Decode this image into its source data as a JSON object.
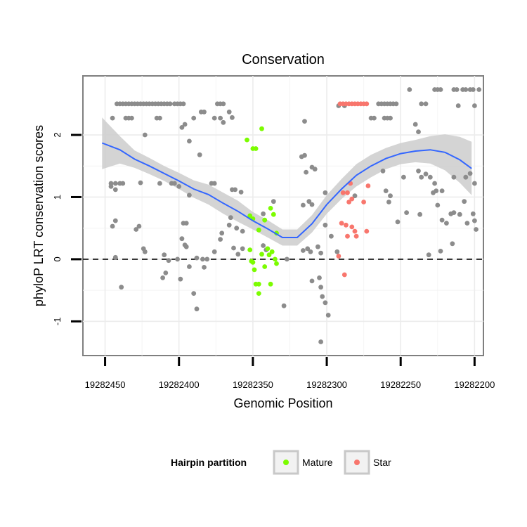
{
  "colors": {
    "other": "#8c8c8c",
    "mature": "#7CFC00",
    "star": "#F8766D",
    "smooth_line": "#3366FF",
    "ribbon": "#cccccc"
  },
  "chart_data": {
    "type": "scatter",
    "title": "Conservation",
    "xlabel": "Genomic Position",
    "ylabel": "phyloP LRT conservation scores",
    "x_reversed": true,
    "xlim": [
      19282465,
      19282194
    ],
    "ylim": [
      -1.55,
      2.95
    ],
    "x_ticks": [
      19282450,
      19282400,
      19282350,
      19282300,
      19282250,
      19282200
    ],
    "x_tick_labels": [
      "19282450",
      "19282400",
      "19282350",
      "19282300",
      "19282250",
      "19282200"
    ],
    "y_ticks": [
      -1,
      0,
      1,
      2
    ],
    "y_tick_labels": [
      "-1",
      "0",
      "1",
      "2"
    ],
    "reference_line": {
      "y": 0,
      "style": "dashed"
    },
    "grid": true,
    "legend": {
      "title": "Hairpin partition",
      "position": "bottom",
      "entries": [
        {
          "label": "Mature",
          "color": "#7CFC00"
        },
        {
          "label": "Star",
          "color": "#F8766D"
        }
      ]
    },
    "series": [
      {
        "id": "other",
        "points": [
          [
            19282442,
            2.5
          ],
          [
            19282440,
            2.5
          ],
          [
            19282438,
            2.5
          ],
          [
            19282436,
            2.5
          ],
          [
            19282434,
            2.5
          ],
          [
            19282432,
            2.5
          ],
          [
            19282430,
            2.5
          ],
          [
            19282428,
            2.5
          ],
          [
            19282426,
            2.5
          ],
          [
            19282424,
            2.5
          ],
          [
            19282422,
            2.5
          ],
          [
            19282420,
            2.5
          ],
          [
            19282418,
            2.5
          ],
          [
            19282416,
            2.5
          ],
          [
            19282414,
            2.5
          ],
          [
            19282412,
            2.5
          ],
          [
            19282410,
            2.5
          ],
          [
            19282408,
            2.5
          ],
          [
            19282406,
            2.5
          ],
          [
            19282403,
            2.5
          ],
          [
            19282401,
            2.5
          ],
          [
            19282399,
            2.5
          ],
          [
            19282397,
            2.5
          ],
          [
            19282374,
            2.5
          ],
          [
            19282372,
            2.5
          ],
          [
            19282370,
            2.5
          ],
          [
            19282292,
            2.47
          ],
          [
            19282265,
            2.5
          ],
          [
            19282263,
            2.5
          ],
          [
            19282261,
            2.5
          ],
          [
            19282259,
            2.5
          ],
          [
            19282257,
            2.5
          ],
          [
            19282255,
            2.5
          ],
          [
            19282253,
            2.5
          ],
          [
            19282244,
            2.73
          ],
          [
            19282236,
            2.5
          ],
          [
            19282233,
            2.5
          ],
          [
            19282227,
            2.73
          ],
          [
            19282225,
            2.73
          ],
          [
            19282223,
            2.73
          ],
          [
            19282214,
            2.73
          ],
          [
            19282212,
            2.73
          ],
          [
            19282208,
            2.73
          ],
          [
            19282206,
            2.73
          ],
          [
            19282197,
            2.73
          ],
          [
            19282203,
            2.73
          ],
          [
            19282201,
            2.73
          ],
          [
            19282211,
            2.47
          ],
          [
            19282200,
            2.47
          ],
          [
            19282445,
            2.27
          ],
          [
            19282436,
            2.27
          ],
          [
            19282434,
            2.27
          ],
          [
            19282432,
            2.27
          ],
          [
            19282415,
            2.27
          ],
          [
            19282413,
            2.27
          ],
          [
            19282385,
            2.37
          ],
          [
            19282383,
            2.37
          ],
          [
            19282376,
            2.27
          ],
          [
            19282366,
            2.37
          ],
          [
            19282364,
            2.28
          ],
          [
            19282398,
            2.12
          ],
          [
            19282396,
            2.17
          ],
          [
            19282390,
            2.27
          ],
          [
            19282372,
            2.27
          ],
          [
            19282370,
            2.2
          ],
          [
            19282288,
            2.47
          ],
          [
            19282270,
            2.27
          ],
          [
            19282268,
            2.27
          ],
          [
            19282261,
            2.27
          ],
          [
            19282259,
            2.27
          ],
          [
            19282257,
            2.27
          ],
          [
            19282240,
            2.17
          ],
          [
            19282238,
            2.05
          ],
          [
            19282423,
            2.0
          ],
          [
            19282393,
            1.9
          ],
          [
            19282386,
            1.68
          ],
          [
            19282315,
            2.22
          ],
          [
            19282317,
            1.65
          ],
          [
            19282315,
            1.67
          ],
          [
            19282314,
            1.4
          ],
          [
            19282310,
            1.48
          ],
          [
            19282308,
            1.45
          ],
          [
            19282446,
            1.22
          ],
          [
            19282443,
            1.22
          ],
          [
            19282440,
            1.22
          ],
          [
            19282438,
            1.22
          ],
          [
            19282446,
            1.17
          ],
          [
            19282443,
            1.12
          ],
          [
            19282426,
            1.23
          ],
          [
            19282413,
            1.22
          ],
          [
            19282405,
            1.22
          ],
          [
            19282403,
            1.22
          ],
          [
            19282400,
            1.17
          ],
          [
            19282393,
            1.03
          ],
          [
            19282378,
            1.22
          ],
          [
            19282376,
            1.22
          ],
          [
            19282362,
            1.12
          ],
          [
            19282358,
            1.08
          ],
          [
            19282364,
            1.12
          ],
          [
            19282336,
            0.93
          ],
          [
            19282312,
            0.93
          ],
          [
            19282310,
            0.88
          ],
          [
            19282301,
            1.07
          ],
          [
            19282281,
            1.02
          ],
          [
            19282262,
            1.42
          ],
          [
            19282260,
            1.1
          ],
          [
            19282257,
            1.02
          ],
          [
            19282248,
            1.32
          ],
          [
            19282238,
            1.42
          ],
          [
            19282236,
            1.32
          ],
          [
            19282233,
            1.37
          ],
          [
            19282230,
            1.32
          ],
          [
            19282227,
            1.22
          ],
          [
            19282226,
            1.1
          ],
          [
            19282222,
            1.1
          ],
          [
            19282214,
            1.32
          ],
          [
            19282206,
            1.32
          ],
          [
            19282203,
            1.38
          ],
          [
            19282200,
            1.22
          ],
          [
            19282228,
            1.07
          ],
          [
            19282443,
            0.62
          ],
          [
            19282445,
            0.53
          ],
          [
            19282429,
            0.48
          ],
          [
            19282427,
            0.53
          ],
          [
            19282397,
            0.58
          ],
          [
            19282395,
            0.58
          ],
          [
            19282398,
            0.33
          ],
          [
            19282396,
            0.23
          ],
          [
            19282372,
            0.32
          ],
          [
            19282371,
            0.42
          ],
          [
            19282366,
            0.55
          ],
          [
            19282365,
            0.67
          ],
          [
            19282361,
            0.5
          ],
          [
            19282357,
            0.45
          ],
          [
            19282343,
            0.73
          ],
          [
            19282316,
            0.87
          ],
          [
            19282301,
            0.55
          ],
          [
            19282293,
            0.12
          ],
          [
            19282258,
            0.92
          ],
          [
            19282252,
            0.6
          ],
          [
            19282246,
            0.75
          ],
          [
            19282237,
            0.72
          ],
          [
            19282225,
            0.87
          ],
          [
            19282222,
            0.63
          ],
          [
            19282219,
            0.58
          ],
          [
            19282216,
            0.73
          ],
          [
            19282214,
            0.75
          ],
          [
            19282210,
            0.72
          ],
          [
            19282207,
            0.93
          ],
          [
            19282205,
            0.58
          ],
          [
            19282201,
            0.73
          ],
          [
            19282199,
            0.48
          ],
          [
            19282200,
            0.62
          ],
          [
            19282443,
            0.03
          ],
          [
            19282424,
            0.17
          ],
          [
            19282423,
            0.12
          ],
          [
            19282410,
            0.07
          ],
          [
            19282407,
            -0.02
          ],
          [
            19282401,
            0.0
          ],
          [
            19282395,
            0.2
          ],
          [
            19282393,
            -0.12
          ],
          [
            19282388,
            0.02
          ],
          [
            19282384,
            0.0
          ],
          [
            19282381,
            0.0
          ],
          [
            19282376,
            0.12
          ],
          [
            19282363,
            0.18
          ],
          [
            19282360,
            0.08
          ],
          [
            19282357,
            0.17
          ],
          [
            19282343,
            0.22
          ],
          [
            19282341,
            0.15
          ],
          [
            19282327,
            0.0
          ],
          [
            19282316,
            0.14
          ],
          [
            19282313,
            0.17
          ],
          [
            19282311,
            0.12
          ],
          [
            19282306,
            0.2
          ],
          [
            19282304,
            0.1
          ],
          [
            19282297,
            0.37
          ],
          [
            19282231,
            0.07
          ],
          [
            19282223,
            0.13
          ],
          [
            19282215,
            0.25
          ],
          [
            19282409,
            -0.22
          ],
          [
            19282411,
            -0.3
          ],
          [
            19282399,
            -0.32
          ],
          [
            19282390,
            -0.55
          ],
          [
            19282388,
            -0.8
          ],
          [
            19282383,
            -0.13
          ],
          [
            19282329,
            -0.75
          ],
          [
            19282305,
            -0.3
          ],
          [
            19282304,
            -0.45
          ],
          [
            19282303,
            -0.6
          ],
          [
            19282301,
            -0.7
          ],
          [
            19282299,
            -0.9
          ],
          [
            19282310,
            -0.35
          ],
          [
            19282439,
            -0.45
          ],
          [
            19282304,
            -1.33
          ]
        ]
      },
      {
        "id": "mature",
        "name": "Mature",
        "points": [
          [
            19282354,
            1.92
          ],
          [
            19282344,
            2.1
          ],
          [
            19282350,
            1.78
          ],
          [
            19282348,
            1.78
          ],
          [
            19282342,
            0.63
          ],
          [
            19282338,
            0.82
          ],
          [
            19282336,
            0.72
          ],
          [
            19282334,
            0.42
          ],
          [
            19282352,
            0.7
          ],
          [
            19282350,
            0.65
          ],
          [
            19282346,
            0.47
          ],
          [
            19282352,
            0.15
          ],
          [
            19282340,
            0.17
          ],
          [
            19282344,
            0.08
          ],
          [
            19282339,
            0.07
          ],
          [
            19282337,
            0.12
          ],
          [
            19282335,
            0.0
          ],
          [
            19282334,
            -0.07
          ],
          [
            19282350,
            -0.05
          ],
          [
            19282349,
            -0.17
          ],
          [
            19282342,
            -0.12
          ],
          [
            19282351,
            -0.03
          ],
          [
            19282348,
            -0.4
          ],
          [
            19282346,
            -0.4
          ],
          [
            19282338,
            -0.4
          ],
          [
            19282346,
            -0.55
          ]
        ]
      },
      {
        "id": "star",
        "name": "Star",
        "points": [
          [
            19282291,
            2.5
          ],
          [
            19282289,
            2.5
          ],
          [
            19282287,
            2.5
          ],
          [
            19282285,
            2.5
          ],
          [
            19282283,
            2.5
          ],
          [
            19282281,
            2.5
          ],
          [
            19282279,
            2.5
          ],
          [
            19282277,
            2.5
          ],
          [
            19282275,
            2.5
          ],
          [
            19282273,
            2.5
          ],
          [
            19282284,
            1.22
          ],
          [
            19282286,
            1.07
          ],
          [
            19282289,
            1.07
          ],
          [
            19282272,
            1.18
          ],
          [
            19282285,
            0.92
          ],
          [
            19282275,
            0.92
          ],
          [
            19282283,
            0.97
          ],
          [
            19282290,
            0.58
          ],
          [
            19282287,
            0.55
          ],
          [
            19282283,
            0.52
          ],
          [
            19282281,
            0.45
          ],
          [
            19282273,
            0.45
          ],
          [
            19282280,
            0.37
          ],
          [
            19282286,
            0.37
          ],
          [
            19282292,
            0.05
          ],
          [
            19282288,
            -0.25
          ]
        ]
      }
    ],
    "smooth_line": {
      "x": [
        19282452,
        19282440,
        19282430,
        19282420,
        19282410,
        19282400,
        19282390,
        19282380,
        19282370,
        19282360,
        19282350,
        19282340,
        19282330,
        19282320,
        19282310,
        19282300,
        19282290,
        19282280,
        19282270,
        19282260,
        19282250,
        19282240,
        19282230,
        19282220,
        19282210,
        19282202
      ],
      "y": [
        1.87,
        1.76,
        1.61,
        1.5,
        1.38,
        1.26,
        1.13,
        1.04,
        0.9,
        0.77,
        0.62,
        0.49,
        0.35,
        0.35,
        0.57,
        0.88,
        1.13,
        1.35,
        1.5,
        1.62,
        1.7,
        1.74,
        1.76,
        1.72,
        1.6,
        1.46
      ],
      "lower": [
        1.45,
        1.54,
        1.47,
        1.37,
        1.26,
        1.13,
        0.99,
        0.88,
        0.73,
        0.6,
        0.48,
        0.35,
        0.22,
        0.22,
        0.43,
        0.73,
        0.97,
        1.17,
        1.32,
        1.45,
        1.53,
        1.56,
        1.54,
        1.43,
        1.23,
        1.03
      ],
      "upper": [
        2.28,
        1.98,
        1.75,
        1.63,
        1.5,
        1.39,
        1.27,
        1.2,
        1.07,
        0.94,
        0.76,
        0.63,
        0.48,
        0.48,
        0.71,
        1.03,
        1.29,
        1.53,
        1.68,
        1.79,
        1.87,
        1.92,
        1.98,
        2.01,
        1.97,
        1.89
      ]
    }
  }
}
